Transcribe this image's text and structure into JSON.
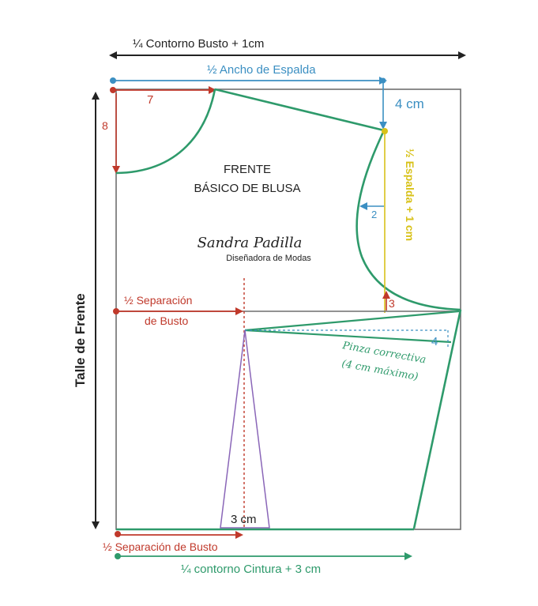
{
  "labels": {
    "top_measure": "¼ Contorno Busto + 1cm",
    "back_width": "½ Ancho de Espalda",
    "four_cm": "4 cm",
    "neck_width": "7",
    "neck_depth": "8",
    "front_title_1": "FRENTE",
    "front_title_2": "BÁSICO DE BLUSA",
    "designer_name": "Sandra Padilla",
    "designer_subtitle": "Diseñadora de Modas",
    "armhole_offset": "2",
    "back_plus": "½ Espalda + 1 cm",
    "side_rise": "3",
    "left_side": "Talle de Frente",
    "bust_sep_1": "½ Separación",
    "bust_sep_2": "de Busto",
    "dart_width": "4",
    "dart_label_1": "Pinza correctiva",
    "dart_label_2": "(4 cm máximo)",
    "waist_dart": "3 cm",
    "bottom_sep": "½ Separación de Busto",
    "bottom_measure": "¼ contorno Cintura + 3 cm"
  },
  "colors": {
    "black": "#222222",
    "blue": "#3b8fc2",
    "red": "#c0392b",
    "green": "#2e9a6b",
    "yellow": "#d8c21a",
    "purple": "#8a66b8",
    "frame": "#6f6f6f"
  }
}
